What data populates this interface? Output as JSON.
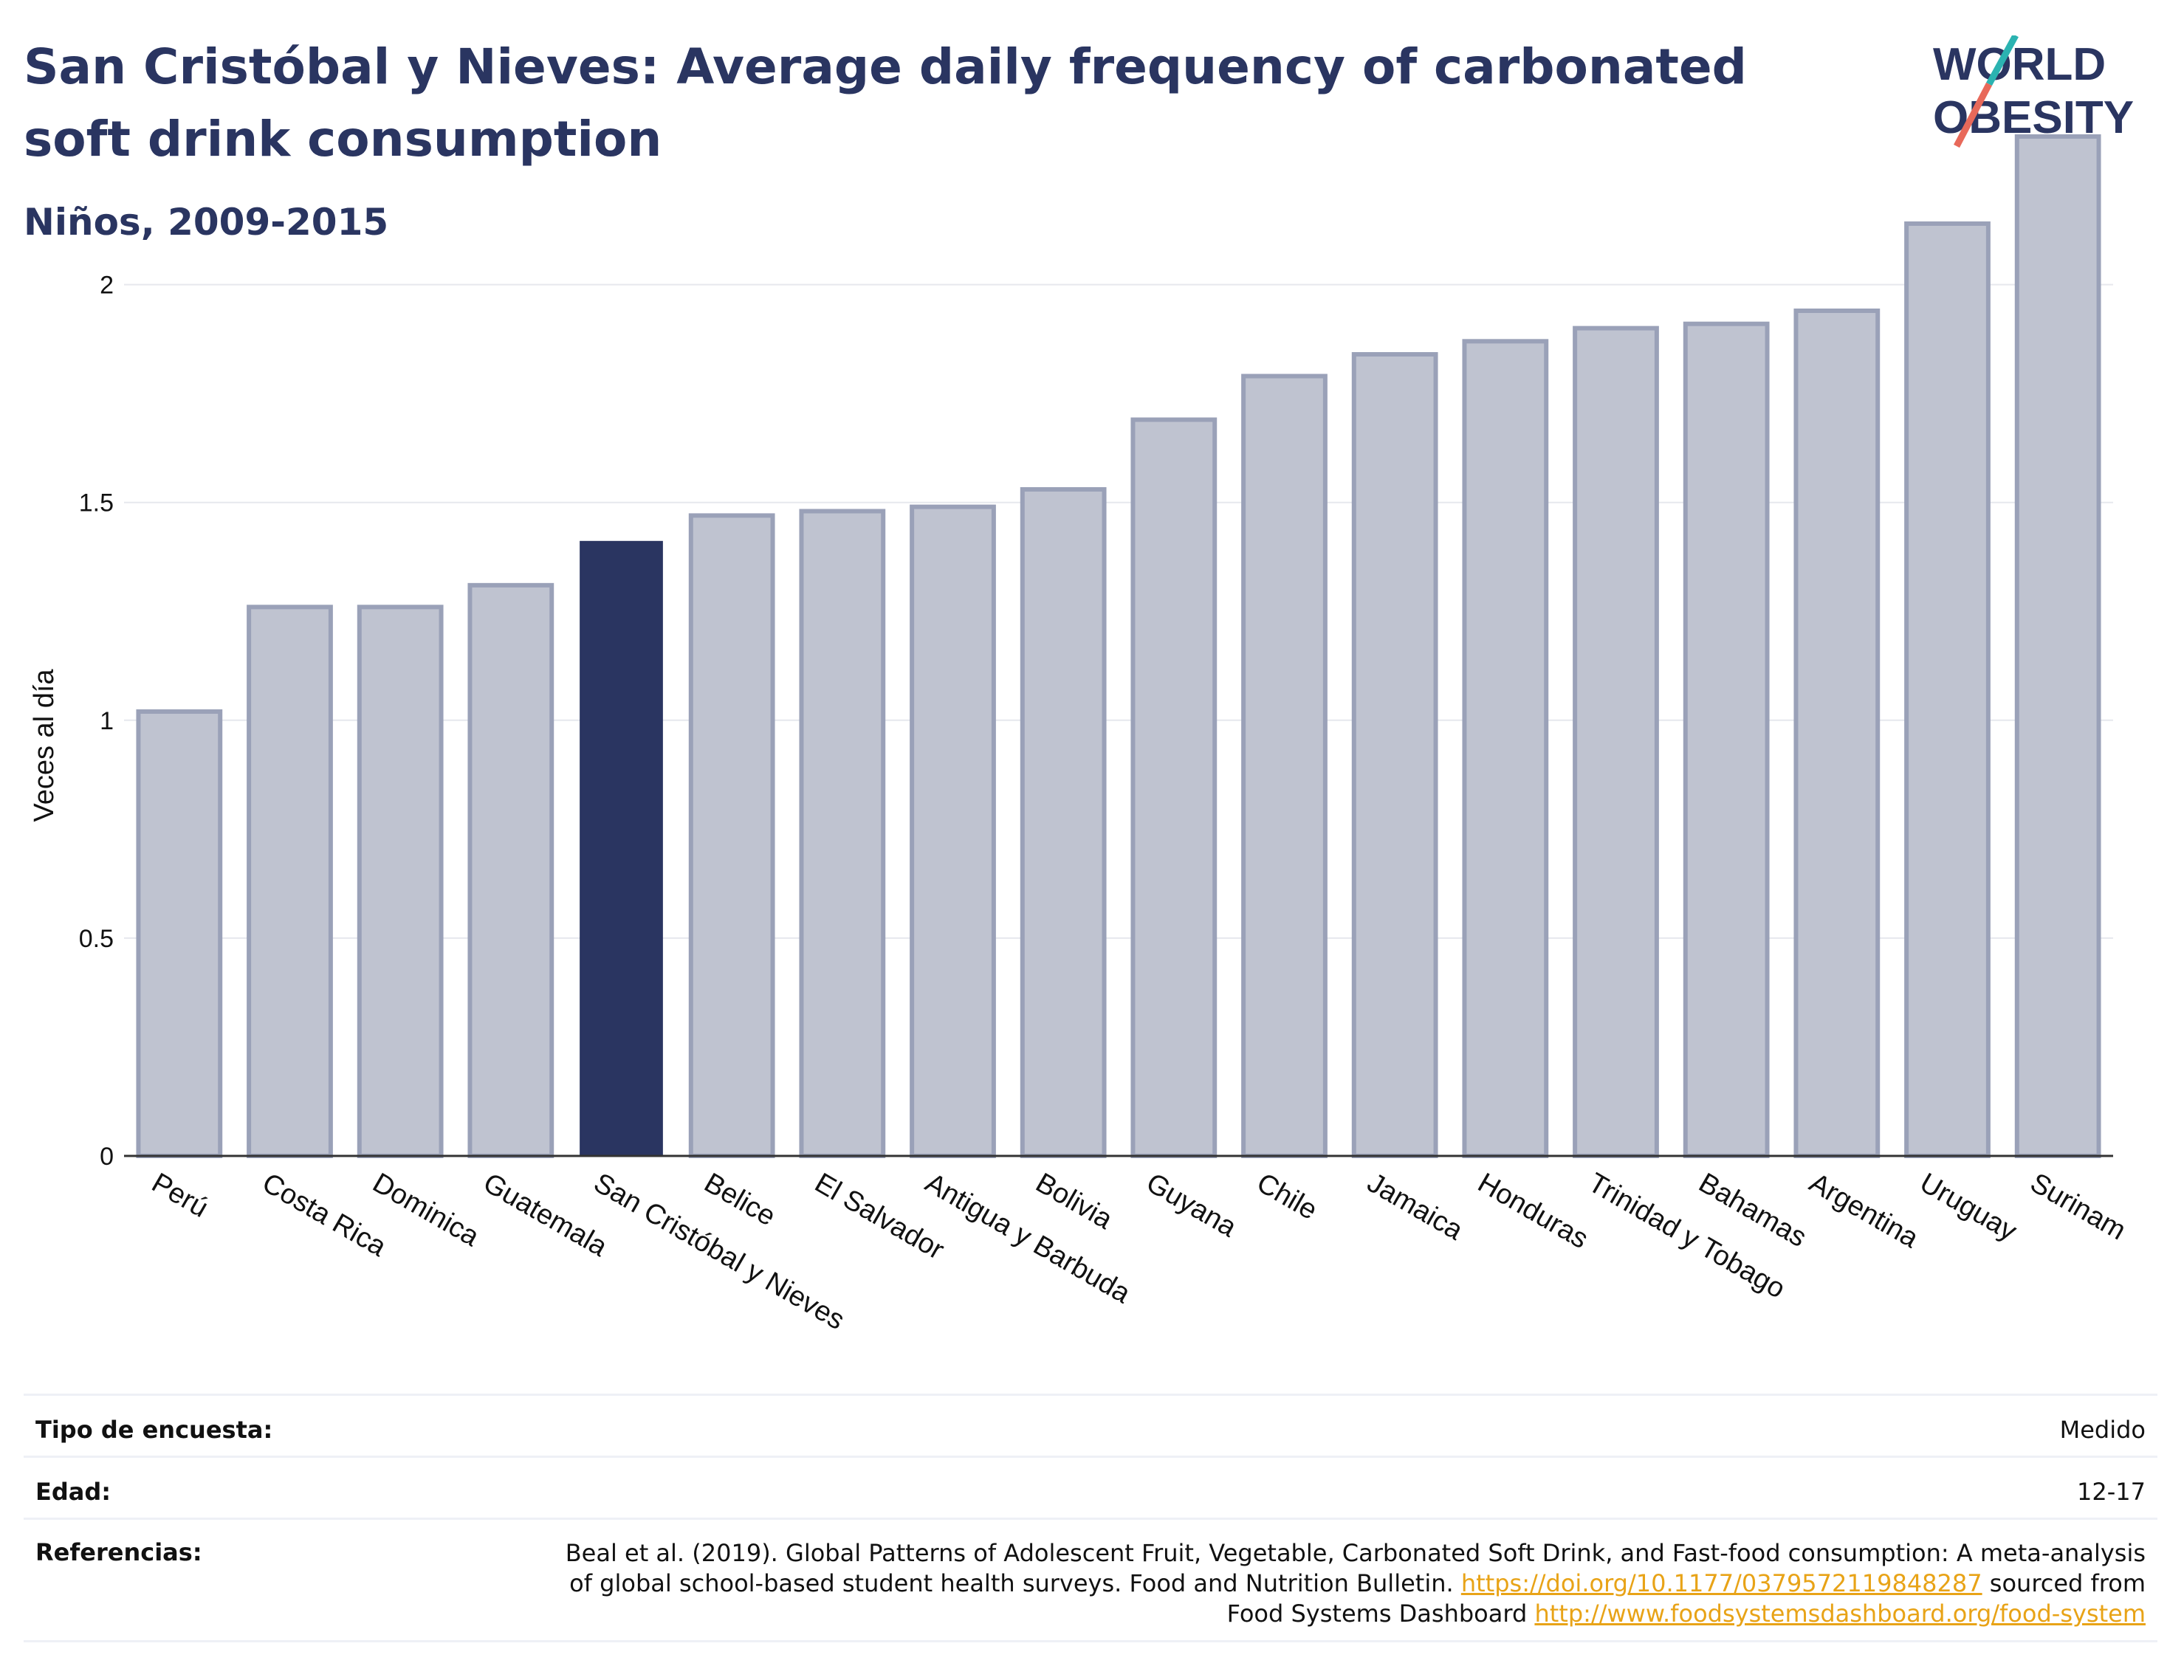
{
  "header": {
    "title": "San Cristóbal y Nieves: Average daily frequency of carbonated soft drink consumption",
    "subtitle": "Niños, 2009-2015"
  },
  "logo": {
    "line1": "WORLD",
    "line2": "OBESITY",
    "accent_teal": "#2bb3b1",
    "accent_coral": "#e8695a",
    "text_color": "#2a3561"
  },
  "chart_data": {
    "type": "bar",
    "title": "San Cristóbal y Nieves: Average daily frequency of carbonated soft drink consumption",
    "subtitle": "Niños, 2009-2015",
    "ylabel": "Veces al día",
    "xlabel": "",
    "ylim": [
      0,
      2.45
    ],
    "yticks": [
      0,
      0.5,
      1,
      1.5,
      2
    ],
    "ytick_labels": [
      "0",
      "0.5",
      "1",
      "1.5",
      "2"
    ],
    "categories": [
      "Perú",
      "Costa Rica",
      "Dominica",
      "Guatemala",
      "San Cristóbal y Nieves",
      "Belice",
      "El Salvador",
      "Antigua y Barbuda",
      "Bolivia",
      "Guyana",
      "Chile",
      "Jamaica",
      "Honduras",
      "Trinidad y Tobago",
      "Bahamas",
      "Argentina",
      "Uruguay",
      "Surinam"
    ],
    "values": [
      1.02,
      1.26,
      1.26,
      1.31,
      1.41,
      1.47,
      1.48,
      1.49,
      1.53,
      1.69,
      1.79,
      1.84,
      1.87,
      1.9,
      1.91,
      1.94,
      2.14,
      2.34
    ],
    "highlight": "San Cristóbal y Nieves",
    "colors": {
      "highlight": "#2a3561",
      "other_fill": "#bfc3d0",
      "other_stroke": "#9aa1b8"
    },
    "grid": true
  },
  "meta": {
    "survey_label": "Tipo de encuesta:",
    "survey_value": "Medido",
    "age_label": "Edad:",
    "age_value": "12-17",
    "ref_label": "Referencias:",
    "ref_line1": "Beal et al. (2019). Global Patterns of Adolescent Fruit, Vegetable, Carbonated Soft Drink, and Fast-food consumption: A meta-analysis",
    "ref_line2_pre": "of global school-based student health surveys. Food and Nutrition Bulletin.",
    "ref_link1": "https://doi.org/10.1177/0379572119848287",
    "ref_line2_post": "sourced from",
    "ref_line3_pre": "Food Systems Dashboard",
    "ref_link2": "http://www.foodsystemsdashboard.org/food-system"
  }
}
